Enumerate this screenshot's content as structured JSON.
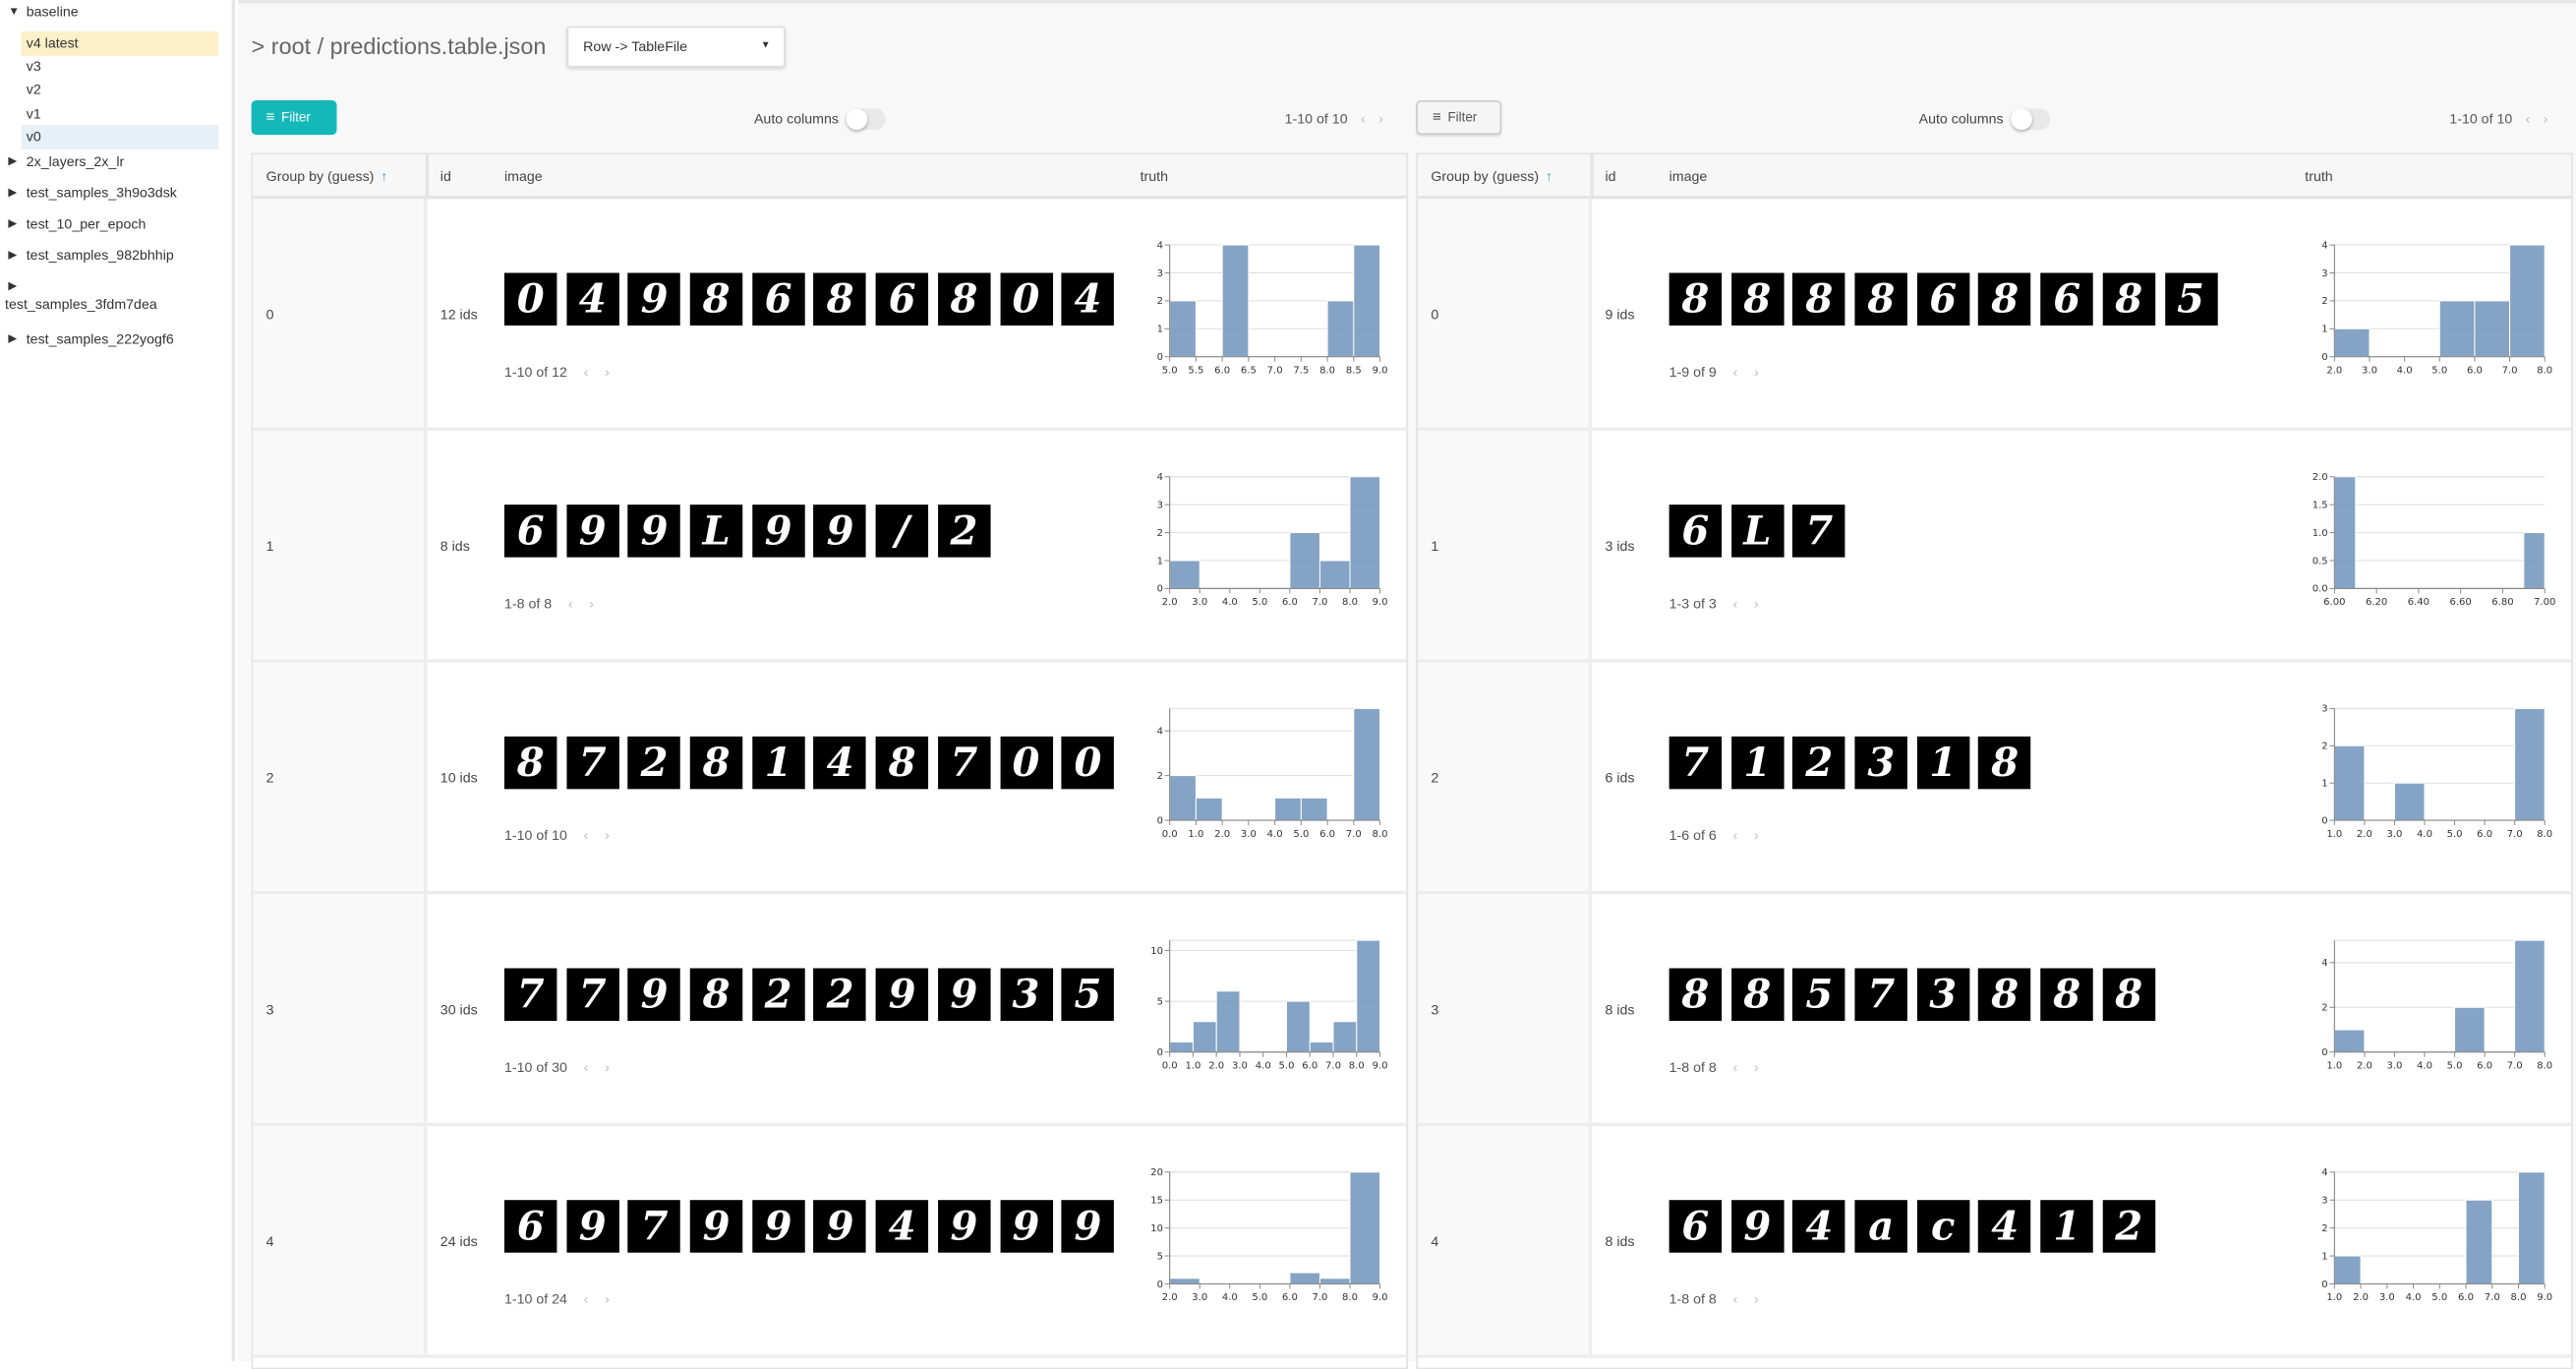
{
  "sidebar": {
    "items": [
      {
        "label": "baseline",
        "expanded": true
      },
      {
        "label": "v4 latest",
        "selected": true
      },
      {
        "label": "v3"
      },
      {
        "label": "v2"
      },
      {
        "label": "v1"
      },
      {
        "label": "v0",
        "hovered": true
      },
      {
        "label": "2x_layers_2x_lr"
      },
      {
        "label": "test_samples_3h9o3dsk"
      },
      {
        "label": "test_10_per_epoch"
      },
      {
        "label": "test_samples_982bhhip"
      },
      {
        "label": "test_samples_3fdm7dea"
      },
      {
        "label": "test_samples_222yogf6"
      }
    ]
  },
  "header": {
    "path": "> root / predictions.table.json",
    "view_select": "Row -> TableFile"
  },
  "colors": {
    "filter_primary": "#14b8b9",
    "bar": "#7d9ec2",
    "selected_version": "#fdf0c8",
    "hover_version": "#e6f0f8"
  },
  "panels": [
    {
      "filter_label": "Filter",
      "auto_columns_label": "Auto columns",
      "auto_columns_on": false,
      "pagination": "1-10 of 10",
      "columns": {
        "group": "Group by (guess)",
        "id": "id",
        "image": "image",
        "truth": "truth"
      },
      "rows": [
        {
          "group": "0",
          "ids": "12 ids",
          "page": "1-10 of 12",
          "thumbnails": [
            "0",
            "4",
            "9",
            "8",
            "6",
            "8",
            "6",
            "8",
            "0",
            "4"
          ]
        },
        {
          "group": "1",
          "ids": "8 ids",
          "page": "1-8 of 8",
          "thumbnails": [
            "6",
            "9",
            "9",
            "L",
            "9",
            "9",
            "/",
            "2"
          ]
        },
        {
          "group": "2",
          "ids": "10 ids",
          "page": "1-10 of 10",
          "thumbnails": [
            "8",
            "7",
            "2",
            "8",
            "1",
            "4",
            "8",
            "7",
            "0",
            "0"
          ]
        },
        {
          "group": "3",
          "ids": "30 ids",
          "page": "1-10 of 30",
          "thumbnails": [
            "7",
            "7",
            "9",
            "8",
            "2",
            "2",
            "9",
            "9",
            "3",
            "5"
          ]
        },
        {
          "group": "4",
          "ids": "24 ids",
          "page": "1-10 of 24",
          "thumbnails": [
            "6",
            "9",
            "7",
            "9",
            "9",
            "9",
            "4",
            "9",
            "9",
            "9"
          ]
        }
      ]
    },
    {
      "filter_label": "Filter",
      "auto_columns_label": "Auto columns",
      "auto_columns_on": false,
      "pagination": "1-10 of 10",
      "columns": {
        "group": "Group by (guess)",
        "id": "id",
        "image": "image",
        "truth": "truth"
      },
      "rows": [
        {
          "group": "0",
          "ids": "9 ids",
          "page": "1-9 of 9",
          "thumbnails": [
            "8",
            "8",
            "8",
            "8",
            "6",
            "8",
            "6",
            "8",
            "5"
          ]
        },
        {
          "group": "1",
          "ids": "3 ids",
          "page": "1-3 of 3",
          "thumbnails": [
            "6",
            "L",
            "7"
          ]
        },
        {
          "group": "2",
          "ids": "6 ids",
          "page": "1-6 of 6",
          "thumbnails": [
            "7",
            "1",
            "2",
            "3",
            "1",
            "8"
          ]
        },
        {
          "group": "3",
          "ids": "8 ids",
          "page": "1-8 of 8",
          "thumbnails": [
            "8",
            "8",
            "5",
            "7",
            "3",
            "8",
            "8",
            "8"
          ]
        },
        {
          "group": "4",
          "ids": "8 ids",
          "page": "1-8 of 8",
          "thumbnails": [
            "6",
            "9",
            "4",
            "a",
            "c",
            "4",
            "1",
            "2"
          ]
        }
      ]
    }
  ],
  "chart_data": [
    {
      "type": "bar",
      "xlim": [
        5,
        9
      ],
      "ylim": [
        0,
        4
      ],
      "x_tick_labels": [
        "5.0",
        "5.5",
        "6.0",
        "6.5",
        "7.0",
        "7.5",
        "8.0",
        "8.5",
        "9.0"
      ],
      "y_tick_labels": [
        "0",
        "1",
        "2",
        "3",
        "4"
      ],
      "grid": true,
      "bins": [
        [
          5,
          5.5,
          2
        ],
        [
          6,
          6.5,
          4
        ],
        [
          8,
          8.5,
          2
        ],
        [
          8.5,
          9,
          4
        ]
      ]
    },
    {
      "type": "bar",
      "xlim": [
        2,
        9
      ],
      "ylim": [
        0,
        4
      ],
      "x_tick_labels": [
        "2.0",
        "3.0",
        "4.0",
        "5.0",
        "6.0",
        "7.0",
        "8.0",
        "9.0"
      ],
      "y_tick_labels": [
        "0",
        "1",
        "2",
        "3",
        "4"
      ],
      "grid": true,
      "bins": [
        [
          2,
          3,
          1
        ],
        [
          6,
          7,
          2
        ],
        [
          7,
          8,
          1
        ],
        [
          8,
          9,
          4
        ]
      ]
    },
    {
      "type": "bar",
      "xlim": [
        0,
        8
      ],
      "ylim": [
        0,
        5
      ],
      "x_tick_labels": [
        "0.0",
        "1.0",
        "2.0",
        "3.0",
        "4.0",
        "5.0",
        "6.0",
        "7.0",
        "8.0"
      ],
      "y_tick_labels": [
        "0",
        "2",
        "4"
      ],
      "grid": true,
      "bins": [
        [
          0,
          1,
          2
        ],
        [
          1,
          2,
          1
        ],
        [
          4,
          5,
          1
        ],
        [
          5,
          6,
          1
        ],
        [
          7,
          8,
          5
        ]
      ]
    },
    {
      "type": "bar",
      "xlim": [
        0,
        9
      ],
      "ylim": [
        0,
        11
      ],
      "x_tick_labels": [
        "0.0",
        "1.0",
        "2.0",
        "3.0",
        "4.0",
        "5.0",
        "6.0",
        "7.0",
        "8.0",
        "9.0"
      ],
      "y_tick_labels": [
        "0",
        "5",
        "10"
      ],
      "grid": true,
      "bins": [
        [
          0,
          1,
          1
        ],
        [
          1,
          2,
          3
        ],
        [
          2,
          3,
          6
        ],
        [
          5,
          6,
          5
        ],
        [
          6,
          7,
          1
        ],
        [
          7,
          8,
          3
        ],
        [
          8,
          9,
          11
        ]
      ]
    },
    {
      "type": "bar",
      "xlim": [
        2,
        9
      ],
      "ylim": [
        0,
        20
      ],
      "x_tick_labels": [
        "2.0",
        "3.0",
        "4.0",
        "5.0",
        "6.0",
        "7.0",
        "8.0",
        "9.0"
      ],
      "y_tick_labels": [
        "0",
        "5",
        "10",
        "15",
        "20"
      ],
      "grid": true,
      "bins": [
        [
          2,
          3,
          1
        ],
        [
          6,
          7,
          2
        ],
        [
          7,
          8,
          1
        ],
        [
          8,
          9,
          20
        ]
      ]
    },
    {
      "type": "bar",
      "xlim": [
        2,
        8
      ],
      "ylim": [
        0,
        4
      ],
      "x_tick_labels": [
        "2.0",
        "3.0",
        "4.0",
        "5.0",
        "6.0",
        "7.0",
        "8.0"
      ],
      "y_tick_labels": [
        "0",
        "1",
        "2",
        "3",
        "4"
      ],
      "grid": true,
      "bins": [
        [
          2,
          3,
          1
        ],
        [
          5,
          6,
          2
        ],
        [
          6,
          7,
          2
        ],
        [
          7,
          8,
          4
        ]
      ]
    },
    {
      "type": "bar",
      "xlim": [
        6,
        7
      ],
      "ylim": [
        0,
        2
      ],
      "x_tick_labels": [
        "6.00",
        "6.20",
        "6.40",
        "6.60",
        "6.80",
        "7.00"
      ],
      "y_tick_labels": [
        "0.0",
        "0.5",
        "1.0",
        "1.5",
        "2.0"
      ],
      "grid": true,
      "bins": [
        [
          6,
          6.1,
          2
        ],
        [
          6.9,
          7,
          1
        ]
      ]
    },
    {
      "type": "bar",
      "xlim": [
        1,
        8
      ],
      "ylim": [
        0,
        3
      ],
      "x_tick_labels": [
        "1.0",
        "2.0",
        "3.0",
        "4.0",
        "5.0",
        "6.0",
        "7.0",
        "8.0"
      ],
      "y_tick_labels": [
        "0",
        "1",
        "2",
        "3"
      ],
      "grid": true,
      "bins": [
        [
          1,
          2,
          2
        ],
        [
          3,
          4,
          1
        ],
        [
          7,
          8,
          3
        ]
      ]
    },
    {
      "type": "bar",
      "xlim": [
        1,
        8
      ],
      "ylim": [
        0,
        5
      ],
      "x_tick_labels": [
        "1.0",
        "2.0",
        "3.0",
        "4.0",
        "5.0",
        "6.0",
        "7.0",
        "8.0"
      ],
      "y_tick_labels": [
        "0",
        "2",
        "4"
      ],
      "grid": true,
      "bins": [
        [
          1,
          2,
          1
        ],
        [
          5,
          6,
          2
        ],
        [
          7,
          8,
          5
        ]
      ]
    },
    {
      "type": "bar",
      "xlim": [
        1,
        9
      ],
      "ylim": [
        0,
        4
      ],
      "x_tick_labels": [
        "1.0",
        "2.0",
        "3.0",
        "4.0",
        "5.0",
        "6.0",
        "7.0",
        "8.0",
        "9.0"
      ],
      "y_tick_labels": [
        "0",
        "1",
        "2",
        "3",
        "4"
      ],
      "grid": true,
      "bins": [
        [
          1,
          2,
          1
        ],
        [
          6,
          7,
          3
        ],
        [
          8,
          9,
          4
        ]
      ]
    }
  ]
}
